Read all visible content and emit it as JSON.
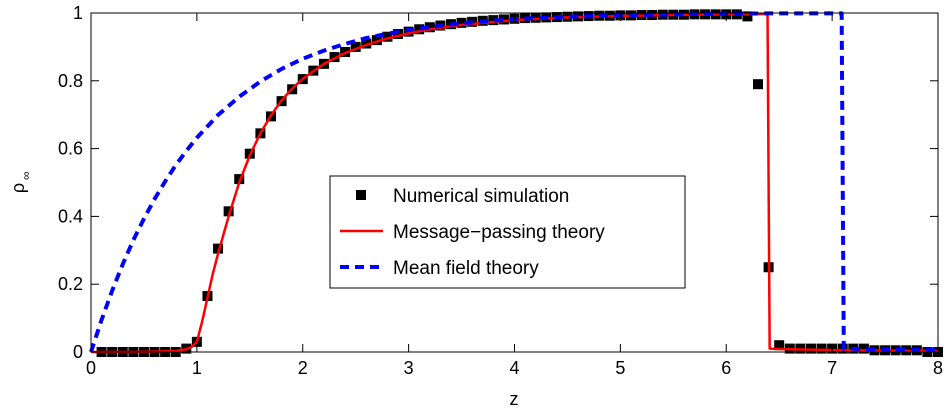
{
  "chart_data": {
    "type": "line",
    "xlabel": "z",
    "ylabel": "ρ",
    "ylabel_subscript": "∞",
    "xlim": [
      0,
      8
    ],
    "ylim": [
      0,
      1
    ],
    "xticks": [
      0,
      1,
      2,
      3,
      4,
      5,
      6,
      7,
      8
    ],
    "yticks": [
      0,
      0.2,
      0.4,
      0.6,
      0.8,
      1
    ],
    "ytick_labels": [
      "0",
      "0.2",
      "0.4",
      "0.6",
      "0.8",
      "1"
    ],
    "grid": false,
    "legend_position": "center",
    "series": [
      {
        "name": "Numerical simulation",
        "style": "markers",
        "color": "#000000",
        "x": [
          0.1,
          0.2,
          0.3,
          0.4,
          0.5,
          0.6,
          0.7,
          0.8,
          0.9,
          1.0,
          1.1,
          1.2,
          1.3,
          1.4,
          1.5,
          1.6,
          1.7,
          1.8,
          1.9,
          2.0,
          2.1,
          2.2,
          2.3,
          2.4,
          2.5,
          2.6,
          2.7,
          2.8,
          2.9,
          3.0,
          3.1,
          3.2,
          3.3,
          3.4,
          3.5,
          3.6,
          3.7,
          3.8,
          3.9,
          4.0,
          4.1,
          4.2,
          4.3,
          4.4,
          4.5,
          4.6,
          4.7,
          4.8,
          4.9,
          5.0,
          5.1,
          5.2,
          5.3,
          5.4,
          5.5,
          5.6,
          5.7,
          5.8,
          5.9,
          6.0,
          6.1,
          6.2,
          6.3,
          6.4,
          6.5,
          6.6,
          6.7,
          6.8,
          6.9,
          7.0,
          7.1,
          7.2,
          7.3,
          7.4,
          7.5,
          7.6,
          7.7,
          7.8,
          7.9,
          8.0
        ],
        "y": [
          0.0,
          0.0,
          0.0,
          0.0,
          0.0,
          0.0,
          0.0,
          0.0,
          0.01,
          0.03,
          0.165,
          0.305,
          0.415,
          0.51,
          0.585,
          0.645,
          0.695,
          0.74,
          0.775,
          0.805,
          0.83,
          0.85,
          0.87,
          0.885,
          0.9,
          0.91,
          0.92,
          0.93,
          0.938,
          0.945,
          0.952,
          0.958,
          0.963,
          0.967,
          0.971,
          0.974,
          0.977,
          0.979,
          0.981,
          0.983,
          0.985,
          0.986,
          0.987,
          0.988,
          0.989,
          0.99,
          0.991,
          0.992,
          0.992,
          0.993,
          0.993,
          0.994,
          0.994,
          0.995,
          0.995,
          0.995,
          0.996,
          0.996,
          0.996,
          0.996,
          0.996,
          0.99,
          0.79,
          0.25,
          0.02,
          0.01,
          0.01,
          0.01,
          0.01,
          0.01,
          0.01,
          0.01,
          0.01,
          0.005,
          0.005,
          0.005,
          0.005,
          0.005,
          0.0,
          0.0
        ]
      },
      {
        "name": "Message−passing theory",
        "style": "solid",
        "color": "#ff0000",
        "x": [
          0,
          0.2,
          0.4,
          0.6,
          0.8,
          0.9,
          0.95,
          1.0,
          1.05,
          1.1,
          1.15,
          1.2,
          1.3,
          1.4,
          1.5,
          1.6,
          1.7,
          1.8,
          1.9,
          2.0,
          2.2,
          2.4,
          2.6,
          2.8,
          3.0,
          3.2,
          3.5,
          4.0,
          4.5,
          5.0,
          5.5,
          6.0,
          6.3,
          6.39,
          6.4,
          6.41,
          6.6,
          7.0,
          7.5,
          8.0
        ],
        "y": [
          0.0,
          0.0,
          0.0,
          0.001,
          0.003,
          0.008,
          0.015,
          0.03,
          0.09,
          0.16,
          0.23,
          0.29,
          0.4,
          0.5,
          0.58,
          0.645,
          0.698,
          0.742,
          0.777,
          0.806,
          0.85,
          0.882,
          0.906,
          0.925,
          0.94,
          0.952,
          0.965,
          0.979,
          0.987,
          0.991,
          0.994,
          0.996,
          0.997,
          0.997,
          0.5,
          0.01,
          0.008,
          0.006,
          0.004,
          0.003
        ]
      },
      {
        "name": "Mean field theory",
        "style": "dashed",
        "color": "#0000ff",
        "x": [
          0,
          0.1,
          0.2,
          0.3,
          0.4,
          0.5,
          0.6,
          0.7,
          0.8,
          0.9,
          1.0,
          1.2,
          1.4,
          1.6,
          1.8,
          2.0,
          2.2,
          2.4,
          2.6,
          2.8,
          3.0,
          3.5,
          4.0,
          4.5,
          5.0,
          5.5,
          6.0,
          6.5,
          7.0,
          7.09,
          7.1,
          7.11,
          7.5,
          8.0
        ],
        "y": [
          0.0,
          0.095,
          0.181,
          0.259,
          0.33,
          0.393,
          0.451,
          0.503,
          0.551,
          0.593,
          0.632,
          0.699,
          0.753,
          0.798,
          0.835,
          0.865,
          0.889,
          0.909,
          0.926,
          0.939,
          0.95,
          0.97,
          0.982,
          0.989,
          0.993,
          0.996,
          0.998,
          0.999,
          0.999,
          0.999,
          0.5,
          0.01,
          0.008,
          0.006
        ]
      }
    ]
  }
}
